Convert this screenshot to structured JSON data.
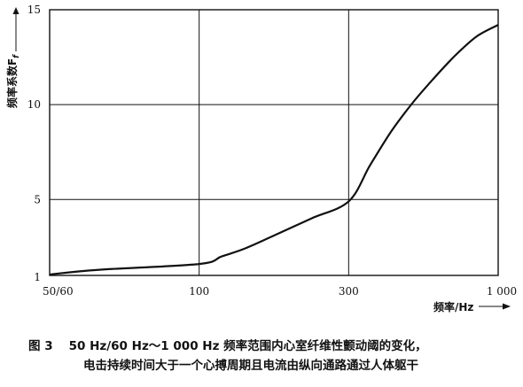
{
  "chart_data": {
    "type": "line",
    "title": "",
    "xlabel": "频率/Hz",
    "ylabel": "频率系数F",
    "ylabel_subscript": "f",
    "x_ticks": [
      {
        "value": 55,
        "label": "50/60"
      },
      {
        "value": 100,
        "label": "100"
      },
      {
        "value": 300,
        "label": "300"
      },
      {
        "value": 1000,
        "label": "1 000"
      }
    ],
    "y_ticks": [
      {
        "value": 1,
        "label": "1"
      },
      {
        "value": 5,
        "label": "5"
      },
      {
        "value": 10,
        "label": "10"
      },
      {
        "value": 15,
        "label": "15"
      }
    ],
    "x_grid_at": [
      100,
      300
    ],
    "y_grid_at": [
      5,
      10
    ],
    "grid": true,
    "legend": "none",
    "xlim": [
      55,
      1000
    ],
    "ylim": [
      1,
      15
    ],
    "x_axis_scale": "non-uniform (tick labels 50/60, 100, 300, 1 000 at equal intervals)",
    "series": [
      {
        "color": "#111111",
        "x": [
          55,
          70,
          100,
          130,
          160,
          200,
          250,
          300,
          400,
          500,
          600,
          700,
          800,
          900,
          1000
        ],
        "y": [
          1.05,
          1.3,
          1.6,
          2.0,
          2.4,
          3.1,
          4.0,
          4.9,
          6.8,
          8.6,
          10.1,
          11.4,
          12.6,
          13.6,
          14.2
        ]
      }
    ]
  },
  "caption": {
    "number": "图 3",
    "line1": "50 Hz/60 Hz～1 000 Hz 频率范围内心室纤维性颤动阈的变化，",
    "line2": "电击持续时间大于一个心搏周期且电流由纵向通路通过人体躯干"
  }
}
